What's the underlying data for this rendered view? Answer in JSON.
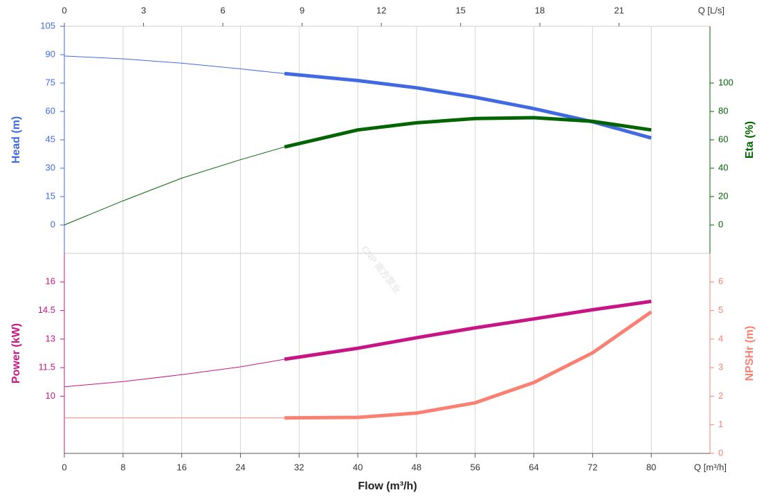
{
  "chart_data": [
    {
      "type": "line",
      "x": [
        0,
        8,
        16,
        24,
        30,
        40,
        48,
        56,
        64,
        72,
        80
      ],
      "xlim": [
        0,
        88
      ],
      "xticks": [
        0,
        8,
        16,
        24,
        32,
        40,
        48,
        56,
        64,
        72,
        80
      ],
      "x2lim": [
        0,
        24.44
      ],
      "x2ticks": [
        0,
        3,
        6,
        9,
        12,
        15,
        18,
        21
      ],
      "x2label": "Q [L/s]",
      "ylim": [
        -15,
        105
      ],
      "yticks": [
        0,
        15,
        30,
        45,
        60,
        75,
        90,
        105
      ],
      "ylabel": "Head (m)",
      "ycolor": "#4169e1",
      "y2lim": [
        -20,
        140
      ],
      "y2ticks": [
        0,
        20,
        40,
        60,
        80,
        100
      ],
      "y2label": "Eta (%)",
      "y2color": "#006400",
      "operating_range": [
        30,
        80
      ],
      "grid": true,
      "series": [
        {
          "name": "Head (m)",
          "color": "#4169e1",
          "values": [
            89.3,
            87.8,
            85.5,
            82.5,
            80,
            76.3,
            72.5,
            67.5,
            61.5,
            54.5,
            46
          ]
        },
        {
          "name": "Eta (%)",
          "color": "#006400",
          "axis": "y2",
          "values": [
            0,
            17,
            33,
            46,
            55,
            67,
            72,
            75,
            75.6,
            73,
            67
          ]
        }
      ],
      "watermark": "CNP 南方泵业"
    },
    {
      "type": "line",
      "x": [
        0,
        8,
        16,
        24,
        30,
        40,
        48,
        56,
        64,
        72,
        80
      ],
      "xlim": [
        0,
        88
      ],
      "xticks": [
        0,
        8,
        16,
        24,
        32,
        40,
        48,
        56,
        64,
        72,
        80
      ],
      "xlabel": "Q [m³/h]",
      "xtitle": "Flow (m³/h)",
      "ylim": [
        7,
        17.5
      ],
      "yticks": [
        10,
        11.5,
        13,
        14.5,
        16
      ],
      "ylabel": "Power (kW)",
      "ycolor": "#c71585",
      "y2lim": [
        0,
        7
      ],
      "y2ticks": [
        0,
        1,
        2,
        3,
        4,
        5,
        6
      ],
      "y2label": "NPSHr (m)",
      "y2color": "#fa8072",
      "operating_range": [
        30,
        80
      ],
      "grid": true,
      "series": [
        {
          "name": "Power (kW)",
          "color": "#c71585",
          "values": [
            10.5,
            10.77,
            11.13,
            11.54,
            11.94,
            12.52,
            13.07,
            13.59,
            14.06,
            14.54,
            14.98
          ]
        },
        {
          "name": "NPSHr (m)",
          "color": "#fa8072",
          "axis": "y2",
          "values": [
            1.24,
            1.24,
            1.24,
            1.24,
            1.24,
            1.26,
            1.41,
            1.77,
            2.48,
            3.52,
            4.95
          ]
        }
      ]
    }
  ]
}
